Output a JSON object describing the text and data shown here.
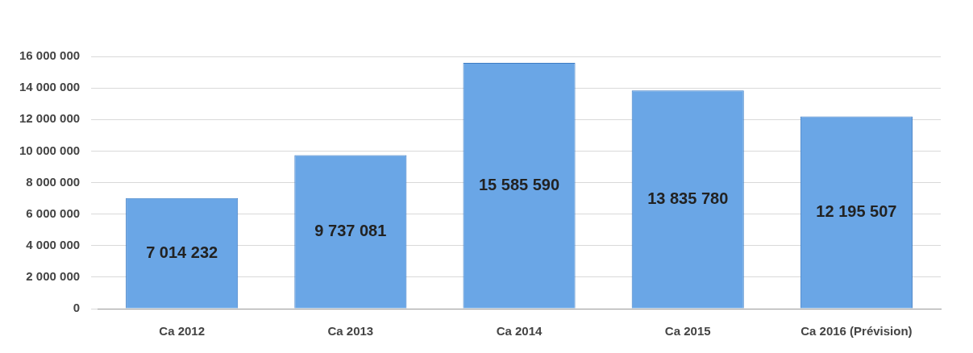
{
  "chart_data": {
    "type": "bar",
    "categories": [
      "Ca 2012",
      "Ca 2013",
      "Ca 2014",
      "Ca 2015",
      "Ca 2016 (Prévision)"
    ],
    "values": [
      7014232,
      9737081,
      15585590,
      13835780,
      12195507
    ],
    "value_labels": [
      "7 014 232",
      "9 737 081",
      "15 585 590",
      "13 835 780",
      "12 195 507"
    ],
    "color": "#6aa6e6",
    "ylim": [
      0,
      16000000
    ],
    "yticks": [
      {
        "value": 0,
        "label": "0"
      },
      {
        "value": 2000000,
        "label": "2 000 000"
      },
      {
        "value": 4000000,
        "label": "4 000 000"
      },
      {
        "value": 6000000,
        "label": "6 000 000"
      },
      {
        "value": 8000000,
        "label": "8 000 000"
      },
      {
        "value": 10000000,
        "label": "10 000 000"
      },
      {
        "value": 12000000,
        "label": "12 000 000"
      },
      {
        "value": 14000000,
        "label": "14 000 000"
      },
      {
        "value": 16000000,
        "label": "16 000 000"
      }
    ],
    "grid": "y"
  }
}
